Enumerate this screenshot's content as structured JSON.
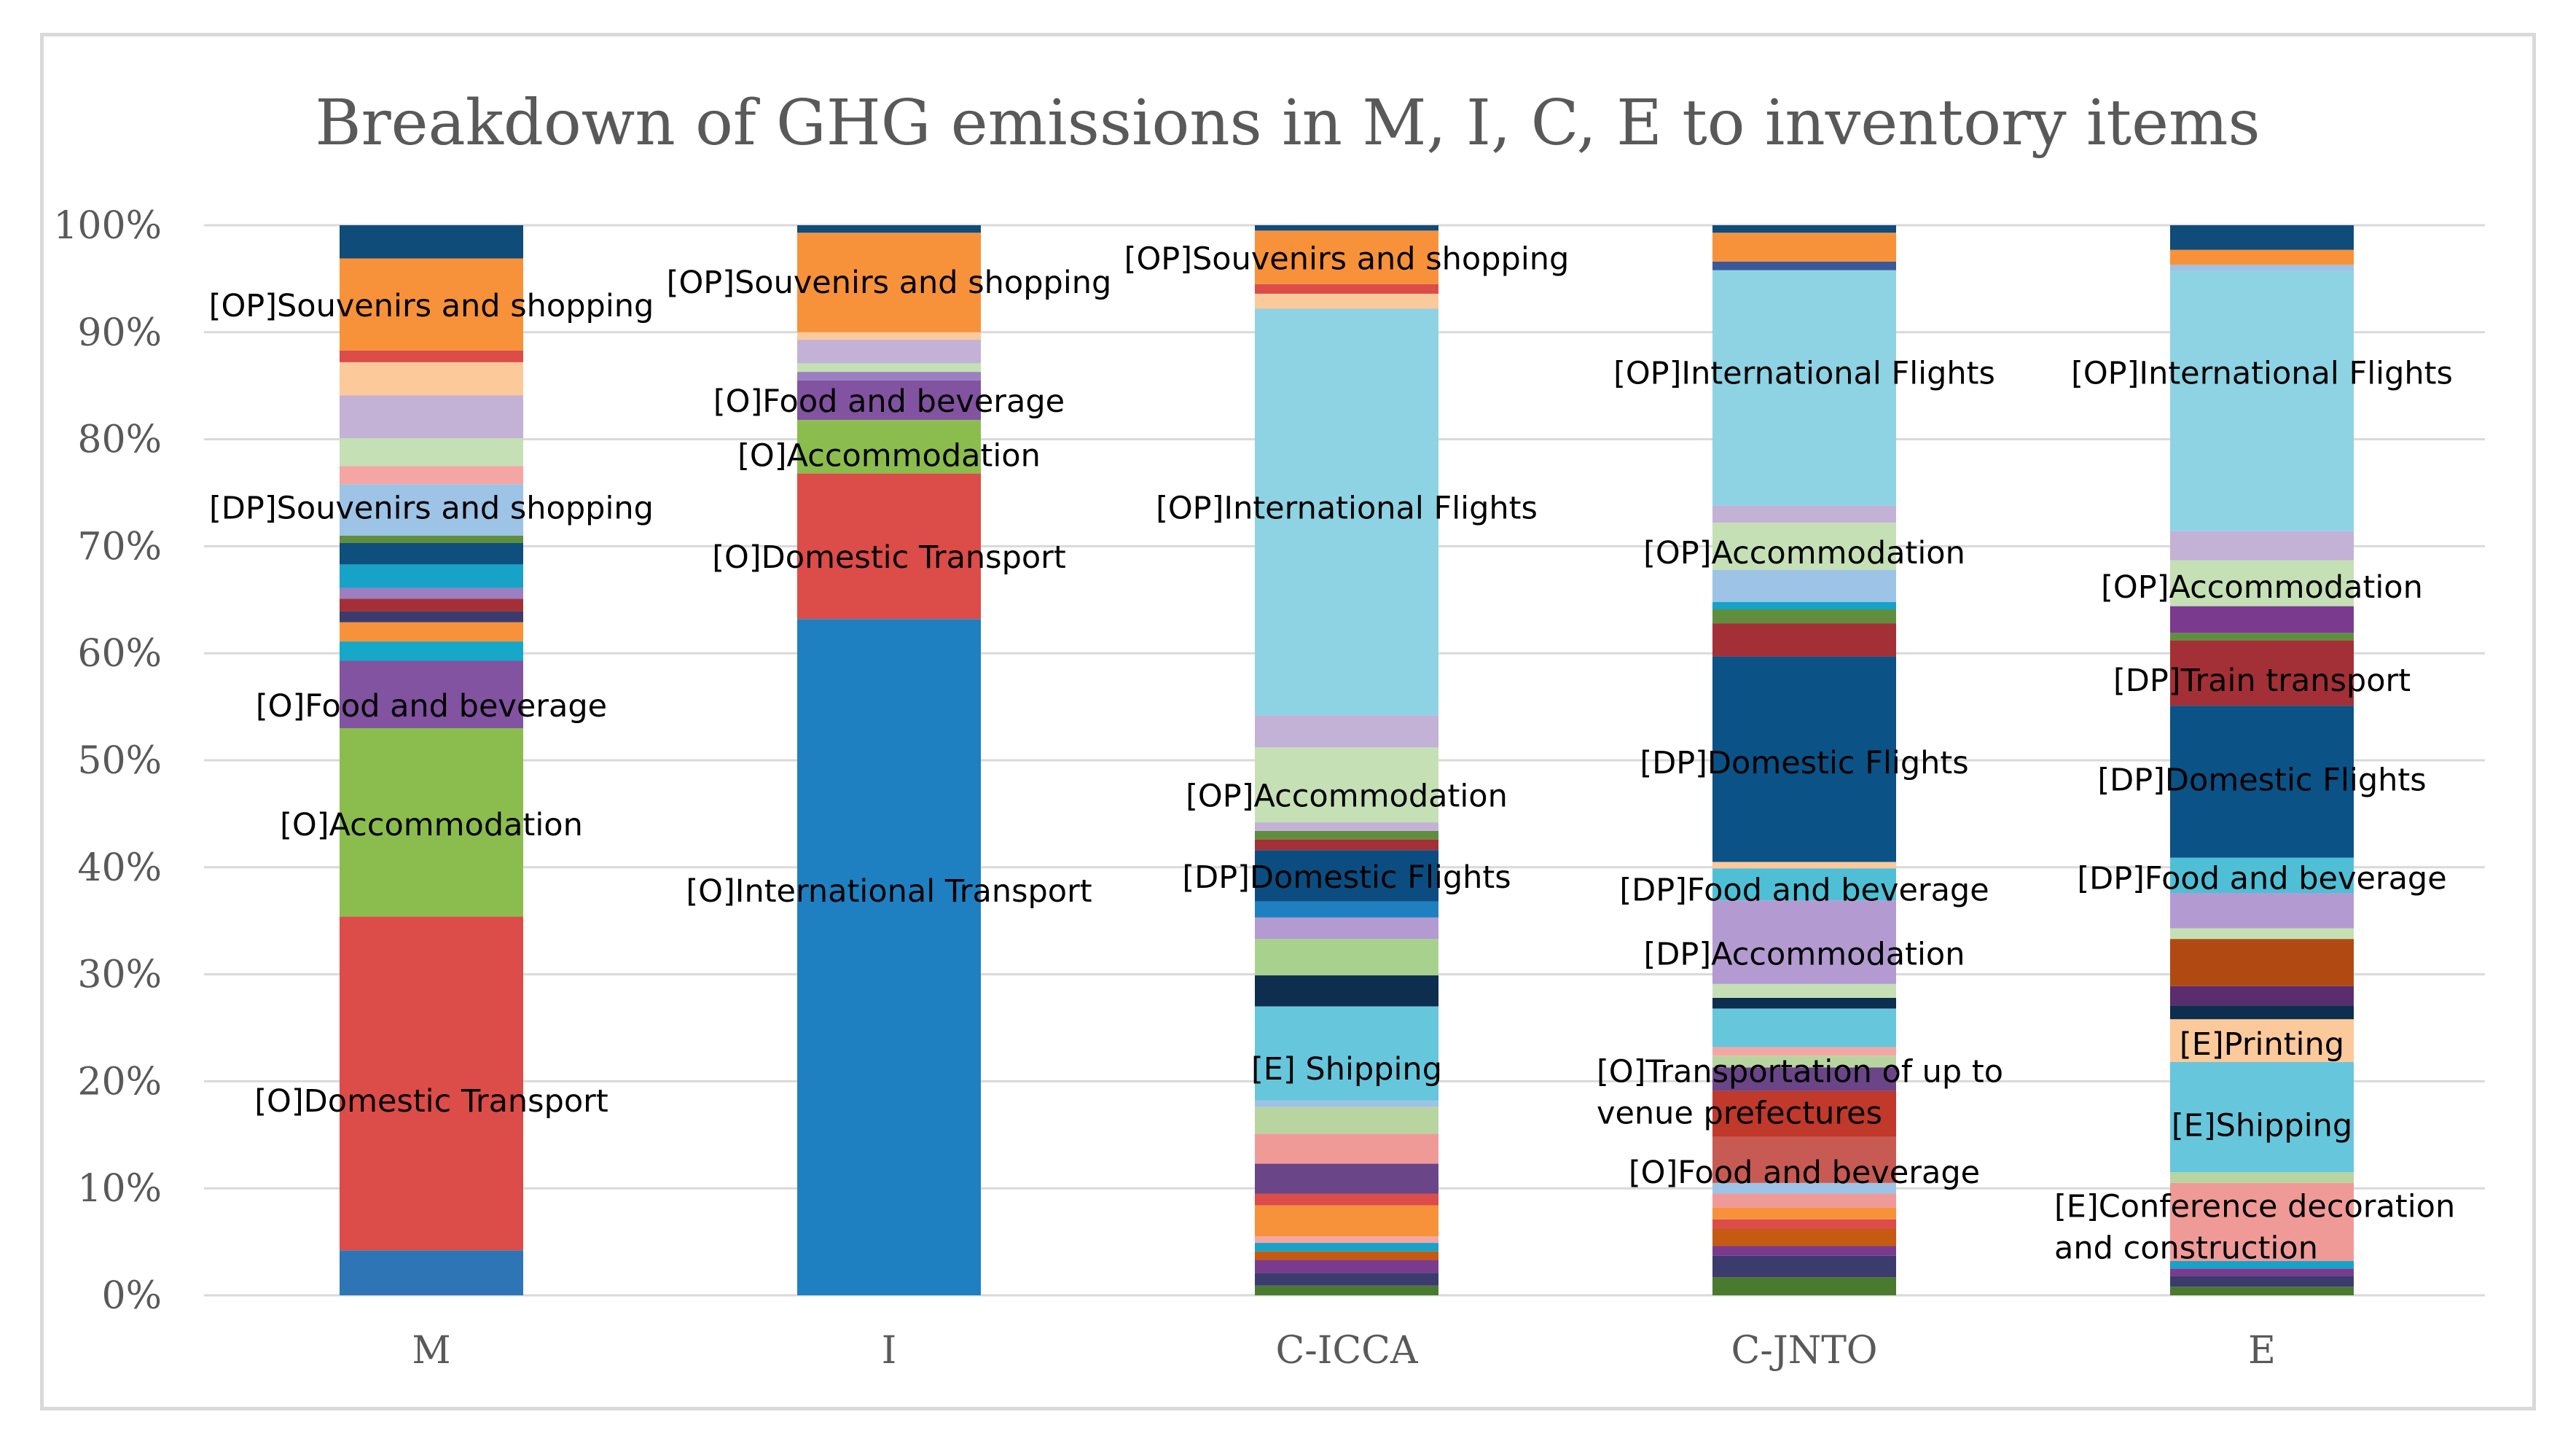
{
  "chart_data": {
    "type": "bar",
    "stacked": true,
    "title": "Breakdown of GHG emissions in M, I, C, E to inventory items",
    "y_ticks": [
      "0%",
      "10%",
      "20%",
      "30%",
      "40%",
      "50%",
      "60%",
      "70%",
      "80%",
      "90%",
      "100%"
    ],
    "ylim": [
      0,
      100
    ],
    "categories": [
      "M",
      "I",
      "C-ICCA",
      "C-JNTO",
      "E"
    ],
    "stacks": [
      {
        "category": "M",
        "segments": [
          {
            "from": 0,
            "to": 4.2,
            "color": "#2e75b6"
          },
          {
            "from": 4.2,
            "to": 35.4,
            "color": "#dc4c48"
          },
          {
            "from": 35.4,
            "to": 53,
            "color": "#8bbd4e"
          },
          {
            "from": 53,
            "to": 59.3,
            "color": "#8253a0"
          },
          {
            "from": 59.3,
            "to": 61.1,
            "color": "#16a8c9"
          },
          {
            "from": 61.1,
            "to": 62.9,
            "color": "#f7923a"
          },
          {
            "from": 62.9,
            "to": 63.9,
            "color": "#3b3b6d"
          },
          {
            "from": 63.9,
            "to": 65.1,
            "color": "#a33036"
          },
          {
            "from": 65.1,
            "to": 66.1,
            "color": "#9b7fc0"
          },
          {
            "from": 66.1,
            "to": 68.3,
            "color": "#17a2c8"
          },
          {
            "from": 68.3,
            "to": 70.3,
            "color": "#0e4f7e"
          },
          {
            "from": 70.3,
            "to": 71,
            "color": "#5f8f3e"
          },
          {
            "from": 71,
            "to": 75.8,
            "color": "#9dc3e6"
          },
          {
            "from": 75.8,
            "to": 77.5,
            "color": "#f4a6a4"
          },
          {
            "from": 77.5,
            "to": 80.1,
            "color": "#c5e0b4"
          },
          {
            "from": 80.1,
            "to": 84.1,
            "color": "#c3b1d6"
          },
          {
            "from": 84.1,
            "to": 87.2,
            "color": "#fcc99b"
          },
          {
            "from": 87.2,
            "to": 88.3,
            "color": "#dc4c48"
          },
          {
            "from": 88.3,
            "to": 96.9,
            "color": "#f7923a"
          },
          {
            "from": 96.9,
            "to": 100,
            "color": "#0f4c7a"
          }
        ]
      },
      {
        "category": "I",
        "segments": [
          {
            "from": 0,
            "to": 63.2,
            "color": "#1f80c1"
          },
          {
            "from": 63.2,
            "to": 76.8,
            "color": "#dc4c48"
          },
          {
            "from": 76.8,
            "to": 81.8,
            "color": "#8bbd4e"
          },
          {
            "from": 81.8,
            "to": 85.5,
            "color": "#8253a0"
          },
          {
            "from": 85.5,
            "to": 86.3,
            "color": "#9b7fc0"
          },
          {
            "from": 86.3,
            "to": 87.1,
            "color": "#c5e0b4"
          },
          {
            "from": 87.1,
            "to": 89.3,
            "color": "#c3b1d6"
          },
          {
            "from": 89.3,
            "to": 90,
            "color": "#fcc99b"
          },
          {
            "from": 90,
            "to": 99.3,
            "color": "#f7923a"
          },
          {
            "from": 99.3,
            "to": 100,
            "color": "#0f4c7a"
          }
        ]
      },
      {
        "category": "C-ICCA",
        "segments": [
          {
            "from": 0,
            "to": 0.9,
            "color": "#4a7a2e"
          },
          {
            "from": 0.9,
            "to": 2.1,
            "color": "#3b3b6d"
          },
          {
            "from": 2.1,
            "to": 3.3,
            "color": "#7a3b8f"
          },
          {
            "from": 3.3,
            "to": 4.1,
            "color": "#c55a11"
          },
          {
            "from": 4.1,
            "to": 4.9,
            "color": "#17a2c8"
          },
          {
            "from": 4.9,
            "to": 5.5,
            "color": "#f4a6a4"
          },
          {
            "from": 5.5,
            "to": 8.4,
            "color": "#f7923a"
          },
          {
            "from": 8.4,
            "to": 9.5,
            "color": "#dc4c48"
          },
          {
            "from": 9.5,
            "to": 12.3,
            "color": "#6a4588"
          },
          {
            "from": 12.3,
            "to": 15.1,
            "color": "#f09a98"
          },
          {
            "from": 15.1,
            "to": 17.6,
            "color": "#b8d5a0"
          },
          {
            "from": 17.6,
            "to": 18.2,
            "color": "#9dc3e6"
          },
          {
            "from": 18.2,
            "to": 27,
            "color": "#66c6dc"
          },
          {
            "from": 27,
            "to": 29.9,
            "color": "#0d2e4e"
          },
          {
            "from": 29.9,
            "to": 33.3,
            "color": "#a9d18e"
          },
          {
            "from": 33.3,
            "to": 35.3,
            "color": "#b39bd1"
          },
          {
            "from": 35.3,
            "to": 36.8,
            "color": "#1f80c1"
          },
          {
            "from": 36.8,
            "to": 41.6,
            "color": "#0b4d80"
          },
          {
            "from": 41.6,
            "to": 42.6,
            "color": "#a33036"
          },
          {
            "from": 42.6,
            "to": 43.4,
            "color": "#5f8f3e"
          },
          {
            "from": 43.4,
            "to": 44.2,
            "color": "#c3b1d6"
          },
          {
            "from": 44.2,
            "to": 51.2,
            "color": "#c5e0b4"
          },
          {
            "from": 51.2,
            "to": 54.2,
            "color": "#c3b1d6"
          },
          {
            "from": 54.2,
            "to": 92.2,
            "color": "#8dd3e3"
          },
          {
            "from": 92.2,
            "to": 93.6,
            "color": "#fcc99b"
          },
          {
            "from": 93.6,
            "to": 94.5,
            "color": "#dc4c48"
          },
          {
            "from": 94.5,
            "to": 99.5,
            "color": "#f7923a"
          },
          {
            "from": 99.5,
            "to": 100,
            "color": "#0f4c7a"
          }
        ]
      },
      {
        "category": "C-JNTO",
        "segments": [
          {
            "from": 0,
            "to": 1.7,
            "color": "#4a7a2e"
          },
          {
            "from": 1.7,
            "to": 3.7,
            "color": "#3b3b6d"
          },
          {
            "from": 3.7,
            "to": 4.6,
            "color": "#7a3b8f"
          },
          {
            "from": 4.6,
            "to": 6.2,
            "color": "#c55a11"
          },
          {
            "from": 6.2,
            "to": 7.1,
            "color": "#dc4c48"
          },
          {
            "from": 7.1,
            "to": 8.2,
            "color": "#f7923a"
          },
          {
            "from": 8.2,
            "to": 9.5,
            "color": "#f09a98"
          },
          {
            "from": 9.5,
            "to": 10.5,
            "color": "#9dc3e6"
          },
          {
            "from": 10.5,
            "to": 14.8,
            "color": "#c85a54"
          },
          {
            "from": 14.8,
            "to": 19.1,
            "color": "#c0392b"
          },
          {
            "from": 19.1,
            "to": 21.3,
            "color": "#6a4588"
          },
          {
            "from": 21.3,
            "to": 22.4,
            "color": "#b8d5a0"
          },
          {
            "from": 22.4,
            "to": 23.2,
            "color": "#f4a6a4"
          },
          {
            "from": 23.2,
            "to": 26.8,
            "color": "#66c6dc"
          },
          {
            "from": 26.8,
            "to": 27.8,
            "color": "#0d2e4e"
          },
          {
            "from": 27.8,
            "to": 29.1,
            "color": "#c5e0b4"
          },
          {
            "from": 29.1,
            "to": 36.9,
            "color": "#b39bd1"
          },
          {
            "from": 36.9,
            "to": 39.9,
            "color": "#4fbfd6"
          },
          {
            "from": 39.9,
            "to": 40.5,
            "color": "#fcc99b"
          },
          {
            "from": 40.5,
            "to": 59.7,
            "color": "#0b5286"
          },
          {
            "from": 59.7,
            "to": 62.8,
            "color": "#a33036"
          },
          {
            "from": 62.8,
            "to": 64.1,
            "color": "#5f8f3e"
          },
          {
            "from": 64.1,
            "to": 64.8,
            "color": "#17a2c8"
          },
          {
            "from": 64.8,
            "to": 67.8,
            "color": "#9dc3e6"
          },
          {
            "from": 67.8,
            "to": 72.2,
            "color": "#c5e0b4"
          },
          {
            "from": 72.2,
            "to": 73.8,
            "color": "#c3b1d6"
          },
          {
            "from": 73.8,
            "to": 95.8,
            "color": "#8dd3e3"
          },
          {
            "from": 95.8,
            "to": 96.6,
            "color": "#3b5998"
          },
          {
            "from": 96.6,
            "to": 99.3,
            "color": "#f7923a"
          },
          {
            "from": 99.3,
            "to": 100,
            "color": "#0f4c7a"
          }
        ]
      },
      {
        "category": "E",
        "segments": [
          {
            "from": 0,
            "to": 0.8,
            "color": "#4a7a2e"
          },
          {
            "from": 0.8,
            "to": 1.8,
            "color": "#3b3b6d"
          },
          {
            "from": 1.8,
            "to": 2.5,
            "color": "#7a3b8f"
          },
          {
            "from": 2.5,
            "to": 3.2,
            "color": "#17a2c8"
          },
          {
            "from": 3.2,
            "to": 10.5,
            "color": "#f09a98"
          },
          {
            "from": 10.5,
            "to": 11.5,
            "color": "#b8d5a0"
          },
          {
            "from": 11.5,
            "to": 21.8,
            "color": "#66c6dc"
          },
          {
            "from": 21.8,
            "to": 25.8,
            "color": "#fcc99b"
          },
          {
            "from": 25.8,
            "to": 27.1,
            "color": "#0d2e4e"
          },
          {
            "from": 27.1,
            "to": 28.9,
            "color": "#5b2d6e"
          },
          {
            "from": 28.9,
            "to": 33.3,
            "color": "#b04a12"
          },
          {
            "from": 33.3,
            "to": 34.3,
            "color": "#c5e0b4"
          },
          {
            "from": 34.3,
            "to": 37.6,
            "color": "#b39bd1"
          },
          {
            "from": 37.6,
            "to": 40.9,
            "color": "#4fbfd6"
          },
          {
            "from": 40.9,
            "to": 55.1,
            "color": "#0b5286"
          },
          {
            "from": 55.1,
            "to": 61.2,
            "color": "#a33036"
          },
          {
            "from": 61.2,
            "to": 61.9,
            "color": "#5f8f3e"
          },
          {
            "from": 61.9,
            "to": 64.4,
            "color": "#7a3b8f"
          },
          {
            "from": 64.4,
            "to": 68.7,
            "color": "#c5e0b4"
          },
          {
            "from": 68.7,
            "to": 71.4,
            "color": "#c3b1d6"
          },
          {
            "from": 71.4,
            "to": 95.7,
            "color": "#8dd3e3"
          },
          {
            "from": 95.7,
            "to": 96.3,
            "color": "#9dc3e6"
          },
          {
            "from": 96.3,
            "to": 97.7,
            "color": "#f7923a"
          },
          {
            "from": 97.7,
            "to": 100,
            "color": "#0f4c7a"
          }
        ]
      }
    ],
    "annotations": [
      {
        "category": "M",
        "value": 92.5,
        "lines": [
          "[OP]Souvenirs and shopping"
        ]
      },
      {
        "category": "M",
        "value": 73.6,
        "lines": [
          "[DP]Souvenirs and    shopping"
        ]
      },
      {
        "category": "M",
        "value": 55.1,
        "lines": [
          "[O]Food and beverage"
        ]
      },
      {
        "category": "M",
        "value": 44,
        "lines": [
          "[O]Accommodation"
        ]
      },
      {
        "category": "M",
        "value": 18.2,
        "lines": [
          "[O]Domestic Transport"
        ]
      },
      {
        "category": "I",
        "value": 94.7,
        "lines": [
          "[OP]Souvenirs and shopping"
        ]
      },
      {
        "category": "I",
        "value": 83.6,
        "lines": [
          "[O]Food and beverage"
        ]
      },
      {
        "category": "I",
        "value": 78.5,
        "lines": [
          "[O]Accommodation"
        ]
      },
      {
        "category": "I",
        "value": 69,
        "lines": [
          "[O]Domestic Transport"
        ]
      },
      {
        "category": "I",
        "value": 37.8,
        "lines": [
          "[O]International Transport"
        ]
      },
      {
        "category": "C-ICCA",
        "value": 96.9,
        "lines": [
          "[OP]Souvenirs and shopping"
        ]
      },
      {
        "category": "C-ICCA",
        "value": 73.6,
        "lines": [
          "[OP]International Flights"
        ]
      },
      {
        "category": "C-ICCA",
        "value": 46.7,
        "lines": [
          "[OP]Accommodation"
        ]
      },
      {
        "category": "C-ICCA",
        "value": 39.1,
        "lines": [
          "[DP]Domestic Flights"
        ]
      },
      {
        "category": "C-ICCA",
        "value": 21.2,
        "lines": [
          "[E] Shipping"
        ]
      },
      {
        "category": "C-JNTO",
        "value": 86.2,
        "lines": [
          "[OP]International Flights"
        ]
      },
      {
        "category": "C-JNTO",
        "value": 69.4,
        "lines": [
          "[OP]Accommodation"
        ]
      },
      {
        "category": "C-JNTO",
        "value": 49.8,
        "lines": [
          "[DP]Domestic Flights"
        ]
      },
      {
        "category": "C-JNTO",
        "value": 37.9,
        "lines": [
          "[DP]Food and beverage"
        ]
      },
      {
        "category": "C-JNTO",
        "value": 31.9,
        "lines": [
          "[DP]Accommodation"
        ]
      },
      {
        "category": "C-JNTO",
        "value": 19,
        "lines": [
          "[O]Transportation of up to",
          "venue prefectures"
        ]
      },
      {
        "category": "C-JNTO",
        "value": 11.5,
        "lines": [
          "[O]Food and beverage"
        ]
      },
      {
        "category": "E",
        "value": 86.2,
        "lines": [
          "[OP]International Flights"
        ]
      },
      {
        "category": "E",
        "value": 66.2,
        "lines": [
          "[OP]Accommodation"
        ]
      },
      {
        "category": "E",
        "value": 57.5,
        "lines": [
          "[DP]Train transport"
        ]
      },
      {
        "category": "E",
        "value": 48.2,
        "lines": [
          "[DP]Domestic Flights"
        ]
      },
      {
        "category": "E",
        "value": 39,
        "lines": [
          "[DP]Food and beverage"
        ]
      },
      {
        "category": "E",
        "value": 23.5,
        "lines": [
          "[E]Printing"
        ]
      },
      {
        "category": "E",
        "value": 15.9,
        "lines": [
          "[E]Shipping"
        ]
      },
      {
        "category": "E",
        "value": 6.4,
        "lines": [
          "[E]Conference  decoration",
          "and construction"
        ]
      }
    ]
  }
}
